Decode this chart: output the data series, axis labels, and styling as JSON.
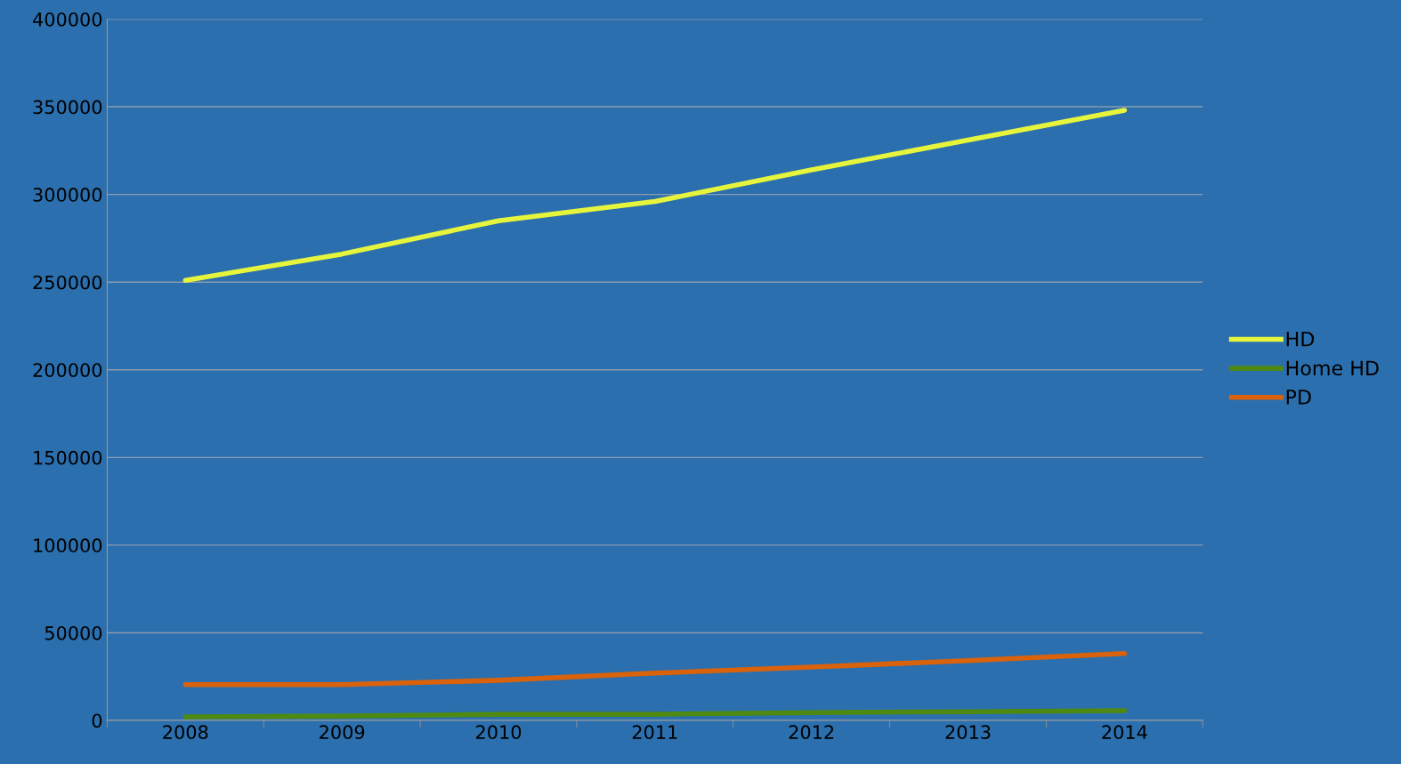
{
  "chart_data": {
    "type": "line",
    "categories": [
      "2008",
      "2009",
      "2010",
      "2011",
      "2012",
      "2013",
      "2014"
    ],
    "series": [
      {
        "name": "HD",
        "color": "#e6f53c",
        "values": [
          251000,
          266000,
          285000,
          296000,
          314000,
          331000,
          348000
        ]
      },
      {
        "name": "Home HD",
        "color": "#4e8a12",
        "values": [
          2000,
          2500,
          3500,
          3500,
          4500,
          5000,
          5600
        ]
      },
      {
        "name": "PD",
        "color": "#d9620a",
        "values": [
          20400,
          20400,
          22900,
          27000,
          30500,
          34100,
          38200
        ]
      }
    ],
    "ylim": [
      0,
      400000
    ],
    "yticks": [
      0,
      50000,
      100000,
      150000,
      200000,
      250000,
      300000,
      350000,
      400000
    ],
    "grid": "y",
    "legend": "right",
    "marker": "none",
    "line_style": "solid"
  }
}
